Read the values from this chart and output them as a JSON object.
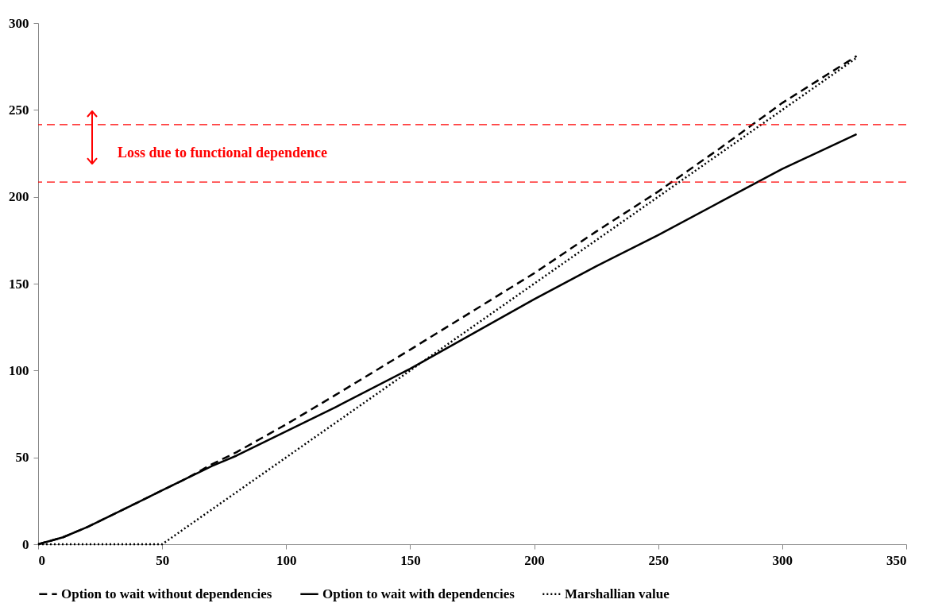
{
  "chart_data": {
    "type": "line",
    "x": [
      0,
      10,
      20,
      30,
      40,
      50,
      60,
      70,
      80,
      100,
      120,
      150,
      175,
      200,
      225,
      250,
      275,
      300,
      330
    ],
    "series": [
      {
        "name": "Option to wait without dependencies",
        "color": "#000000",
        "line_style": "dashed",
        "values": [
          0,
          4,
          10,
          17,
          24,
          31,
          38,
          46,
          53,
          69,
          86,
          112,
          134,
          156,
          180,
          203,
          228,
          254,
          281
        ]
      },
      {
        "name": "Option to wait with dependencies",
        "color": "#000000",
        "line_style": "solid",
        "values": [
          0,
          4,
          10,
          17,
          24,
          31,
          38,
          45,
          51,
          65,
          79,
          101,
          121,
          141,
          160,
          178,
          197,
          216,
          236
        ]
      },
      {
        "name": "Marshallian value",
        "color": "#000000",
        "line_style": "dotted",
        "x": [
          0,
          50,
          330
        ],
        "values": [
          0,
          0,
          280
        ]
      }
    ],
    "xlim": [
      0,
      350
    ],
    "xticks": [
      0,
      50,
      100,
      150,
      200,
      250,
      300,
      350
    ],
    "ylim": [
      0,
      300
    ],
    "yticks": [
      0,
      50,
      100,
      150,
      200,
      250,
      300
    ],
    "grid": false,
    "legend": "bottom",
    "marker": "none",
    "ref_lines": [
      {
        "axis": "y",
        "value": 241.5,
        "color": "#ff0000",
        "line_style": "dashed"
      },
      {
        "axis": "y",
        "value": 208.5,
        "color": "#ff0000",
        "line_style": "dashed"
      }
    ],
    "annotations": [
      "Loss due to functional dependence"
    ]
  }
}
